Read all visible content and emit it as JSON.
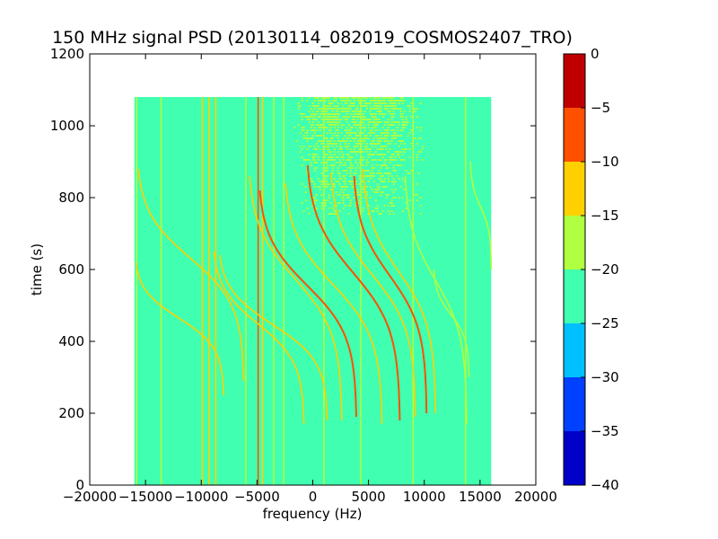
{
  "chart_data": {
    "type": "heatmap",
    "title": "150 MHz signal PSD (20130114_082019_COSMOS2407_TRO)",
    "xlabel": "frequency (Hz)",
    "ylabel": "time (s)",
    "xlim": [
      -20000,
      20000
    ],
    "ylim": [
      0,
      1200
    ],
    "xticks": [
      -20000,
      -15000,
      -10000,
      -5000,
      0,
      5000,
      10000,
      15000,
      20000
    ],
    "xtick_labels": [
      "−20000",
      "−15000",
      "−10000",
      "−5000",
      "0",
      "5000",
      "10000",
      "15000",
      "20000"
    ],
    "yticks": [
      0,
      200,
      400,
      600,
      800,
      1000,
      1200
    ],
    "ytick_labels": [
      "0",
      "200",
      "400",
      "600",
      "800",
      "1000",
      "1200"
    ],
    "data_extent": {
      "x": [
        -16000,
        16000
      ],
      "y": [
        0,
        1080
      ]
    },
    "background_level": "-25 to -20",
    "colorbar": {
      "min": -40,
      "max": 0,
      "ticks": [
        0,
        -5,
        -10,
        -15,
        -20,
        -25,
        -30,
        -35,
        -40
      ],
      "tick_labels": [
        "0",
        "−5",
        "−10",
        "−15",
        "−20",
        "−25",
        "−30",
        "−35",
        "−40"
      ],
      "bands": [
        {
          "range": [
            -40,
            -35
          ],
          "color": "#0000c8"
        },
        {
          "range": [
            -35,
            -30
          ],
          "color": "#0040ff"
        },
        {
          "range": [
            -30,
            -25
          ],
          "color": "#00c0ff"
        },
        {
          "range": [
            -25,
            -20
          ],
          "color": "#40ffb0"
        },
        {
          "range": [
            -20,
            -15
          ],
          "color": "#b0ff40"
        },
        {
          "range": [
            -15,
            -10
          ],
          "color": "#ffd000"
        },
        {
          "range": [
            -10,
            -5
          ],
          "color": "#ff5000"
        },
        {
          "range": [
            -5,
            0
          ],
          "color": "#c00000"
        }
      ]
    },
    "vertical_lines": [
      {
        "x": -15800,
        "level": -17
      },
      {
        "x": -13600,
        "level": -17
      },
      {
        "x": -9900,
        "level": -12
      },
      {
        "x": -9300,
        "level": -12
      },
      {
        "x": -8700,
        "level": -12
      },
      {
        "x": -6000,
        "level": -17
      },
      {
        "x": -4900,
        "level": -7
      },
      {
        "x": -4500,
        "level": -12
      },
      {
        "x": -3500,
        "level": -17
      },
      {
        "x": -2600,
        "level": -17
      },
      {
        "x": 1000,
        "level": -17
      },
      {
        "x": 4300,
        "level": -17
      },
      {
        "x": 9000,
        "level": -17
      },
      {
        "x": 13700,
        "level": -17
      }
    ],
    "satellite_traces": [
      {
        "x_top": -4900,
        "x_bottom": 3900,
        "y_top": 820,
        "y_bottom": 190,
        "level": -7
      },
      {
        "x_top": -600,
        "x_bottom": 7800,
        "y_top": 890,
        "y_bottom": 180,
        "level": -7
      },
      {
        "x_top": 3600,
        "x_bottom": 10200,
        "y_top": 860,
        "y_bottom": 200,
        "level": -7
      },
      {
        "x_top": -15800,
        "x_bottom": -6200,
        "y_top": 880,
        "y_bottom": 290,
        "level": -12
      },
      {
        "x_top": -16000,
        "x_bottom": -8000,
        "y_top": 620,
        "y_bottom": 250,
        "level": -12
      },
      {
        "x_top": -9000,
        "x_bottom": -800,
        "y_top": 650,
        "y_bottom": 170,
        "level": -12
      },
      {
        "x_top": -8500,
        "x_bottom": 1300,
        "y_top": 640,
        "y_bottom": 180,
        "level": -12
      },
      {
        "x_top": -5800,
        "x_bottom": 2600,
        "y_top": 860,
        "y_bottom": 180,
        "level": -12
      },
      {
        "x_top": -2600,
        "x_bottom": 6200,
        "y_top": 840,
        "y_bottom": 170,
        "level": -12
      },
      {
        "x_top": 1500,
        "x_bottom": 9200,
        "y_top": 870,
        "y_bottom": 190,
        "level": -12
      },
      {
        "x_top": 4400,
        "x_bottom": 11000,
        "y_top": 880,
        "y_bottom": 200,
        "level": -12
      },
      {
        "x_top": 8200,
        "x_bottom": 13800,
        "y_top": 860,
        "y_bottom": 170,
        "level": -17
      },
      {
        "x_top": 10800,
        "x_bottom": 14000,
        "y_top": 600,
        "y_bottom": 300,
        "level": -17
      },
      {
        "x_top": 14100,
        "x_bottom": 16000,
        "y_top": 900,
        "y_bottom": 600,
        "level": -17
      }
    ],
    "noise_region": {
      "x": [
        -2000,
        10000
      ],
      "y": [
        750,
        1080
      ],
      "level": -17
    },
    "grid": false,
    "legend": "colorbar-right"
  }
}
